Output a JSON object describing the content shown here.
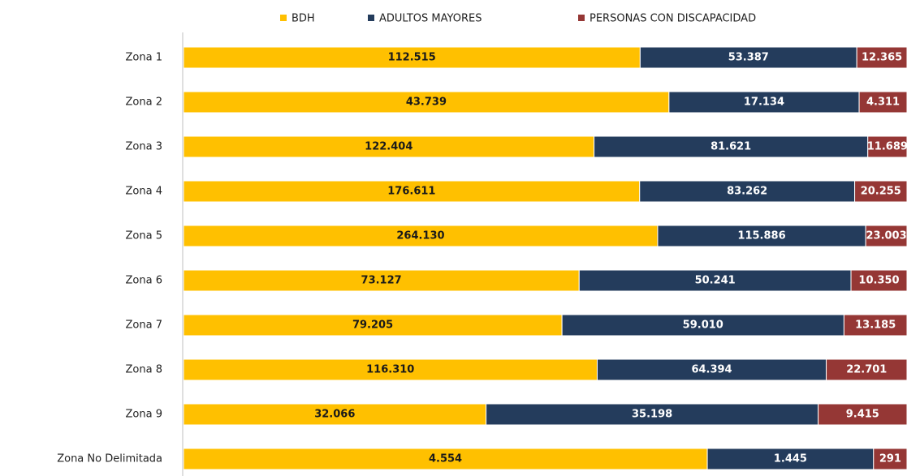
{
  "chart_data": {
    "type": "bar",
    "orientation": "horizontal",
    "stacked": "percent",
    "legend": "top",
    "categories": [
      "Zona 1",
      "Zona 2",
      "Zona 3",
      "Zona 4",
      "Zona 5",
      "Zona 6",
      "Zona 7",
      "Zona 8",
      "Zona 9",
      "Zona No Delimitada"
    ],
    "series": [
      {
        "name": "BDH",
        "color": "#FFC000",
        "label_color": "#1a1a1a",
        "values": [
          112515,
          43739,
          122404,
          176611,
          264130,
          73127,
          79205,
          116310,
          32066,
          4554
        ],
        "value_labels": [
          "112.515",
          "43.739",
          "122.404",
          "176.611",
          "264.130",
          "73.127",
          "79.205",
          "116.310",
          "32.066",
          "4.554"
        ]
      },
      {
        "name": "ADULTOS MAYORES",
        "color": "#243C5C",
        "label_color": "#ffffff",
        "values": [
          53387,
          17134,
          81621,
          83262,
          115886,
          50241,
          59010,
          64394,
          35198,
          1445
        ],
        "value_labels": [
          "53.387",
          "17.134",
          "81.621",
          "83.262",
          "115.886",
          "50.241",
          "59.010",
          "64.394",
          "35.198",
          "1.445"
        ]
      },
      {
        "name": "PERSONAS CON DISCAPACIDAD",
        "color": "#953735",
        "label_color": "#ffffff",
        "values": [
          12365,
          4311,
          11689,
          20255,
          23003,
          10350,
          13185,
          22701,
          9415,
          291
        ],
        "value_labels": [
          "12.365",
          "4.311",
          "11.689",
          "20.255",
          "23.003",
          "10.350",
          "13.185",
          "22.701",
          "9.415",
          "291"
        ]
      }
    ]
  }
}
